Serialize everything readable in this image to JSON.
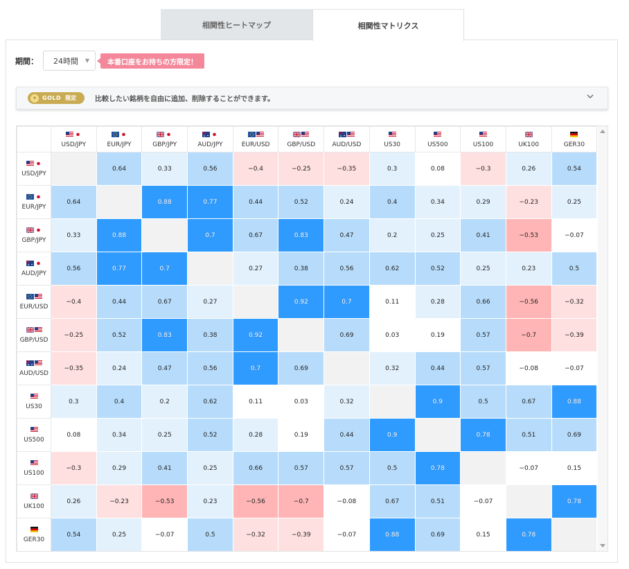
{
  "tabs": [
    {
      "label": "相関性ヒートマップ",
      "active": false
    },
    {
      "label": "相関性マトリクス",
      "active": true
    }
  ],
  "filter": {
    "period_label": "期間：",
    "period_value": "24時間",
    "promo": "本番口座をお持ちの方限定！"
  },
  "gold_bar": {
    "badge_word": "GOLD",
    "badge_tag": "限定",
    "text": "比較したい銘柄を自由に追加、削除することができます。"
  },
  "colors": {
    "strong_pos": "#2f9bff",
    "mid_pos": "#b7dcfb",
    "weak_pos": "#e3f1fd",
    "neutral": "#ffffff",
    "weak_neg": "#ffe0e0",
    "mid_neg": "#ffb5b5",
    "diagonal": "#f2f2f2"
  },
  "symbols": [
    {
      "label": "USD/JPY",
      "flags": [
        "us",
        "jp"
      ]
    },
    {
      "label": "EUR/JPY",
      "flags": [
        "eu",
        "jp"
      ]
    },
    {
      "label": "GBP/JPY",
      "flags": [
        "uk",
        "jp"
      ]
    },
    {
      "label": "AUD/JPY",
      "flags": [
        "au",
        "jp"
      ]
    },
    {
      "label": "EUR/USD",
      "flags": [
        "eu",
        "us"
      ]
    },
    {
      "label": "GBP/USD",
      "flags": [
        "uk",
        "us"
      ]
    },
    {
      "label": "AUD/USD",
      "flags": [
        "au",
        "us"
      ]
    },
    {
      "label": "US30",
      "flags": [
        "us"
      ]
    },
    {
      "label": "US500",
      "flags": [
        "us"
      ]
    },
    {
      "label": "US100",
      "flags": [
        "us"
      ]
    },
    {
      "label": "UK100",
      "flags": [
        "uk"
      ]
    },
    {
      "label": "GER30",
      "flags": [
        "de"
      ]
    }
  ],
  "matrix": [
    [
      null,
      "0.64",
      "0.33",
      "0.56",
      "-0.4",
      "-0.25",
      "-0.35",
      "0.3",
      "0.08",
      "-0.3",
      "0.26",
      "0.54"
    ],
    [
      "0.64",
      null,
      "0.88",
      "0.77",
      "0.44",
      "0.52",
      "0.24",
      "0.4",
      "0.34",
      "0.29",
      "-0.23",
      "0.25"
    ],
    [
      "0.33",
      "0.88",
      null,
      "0.7",
      "0.67",
      "0.83",
      "0.47",
      "0.2",
      "0.25",
      "0.41",
      "-0.53",
      "-0.07"
    ],
    [
      "0.56",
      "0.77",
      "0.7",
      null,
      "0.27",
      "0.38",
      "0.56",
      "0.62",
      "0.52",
      "0.25",
      "0.23",
      "0.5"
    ],
    [
      "-0.4",
      "0.44",
      "0.67",
      "0.27",
      null,
      "0.92",
      "0.7",
      "0.11",
      "0.28",
      "0.66",
      "-0.56",
      "-0.32"
    ],
    [
      "-0.25",
      "0.52",
      "0.83",
      "0.38",
      "0.92",
      null,
      "0.69",
      "0.03",
      "0.19",
      "0.57",
      "-0.7",
      "-0.39"
    ],
    [
      "-0.35",
      "0.24",
      "0.47",
      "0.56",
      "0.7",
      "0.69",
      null,
      "0.32",
      "0.44",
      "0.57",
      "-0.08",
      "-0.07"
    ],
    [
      "0.3",
      "0.4",
      "0.2",
      "0.62",
      "0.11",
      "0.03",
      "0.32",
      null,
      "0.9",
      "0.5",
      "0.67",
      "0.88"
    ],
    [
      "0.08",
      "0.34",
      "0.25",
      "0.52",
      "0.28",
      "0.19",
      "0.44",
      "0.9",
      null,
      "0.78",
      "0.51",
      "0.69"
    ],
    [
      "-0.3",
      "0.29",
      "0.41",
      "0.25",
      "0.66",
      "0.57",
      "0.57",
      "0.5",
      "0.78",
      null,
      "-0.07",
      "0.15"
    ],
    [
      "0.26",
      "-0.23",
      "-0.53",
      "0.23",
      "-0.56",
      "-0.7",
      "-0.08",
      "0.67",
      "0.51",
      "-0.07",
      null,
      "0.78"
    ],
    [
      "0.54",
      "0.25",
      "-0.07",
      "0.5",
      "-0.32",
      "-0.39",
      "-0.07",
      "0.88",
      "0.69",
      "0.15",
      "0.78",
      null
    ]
  ]
}
